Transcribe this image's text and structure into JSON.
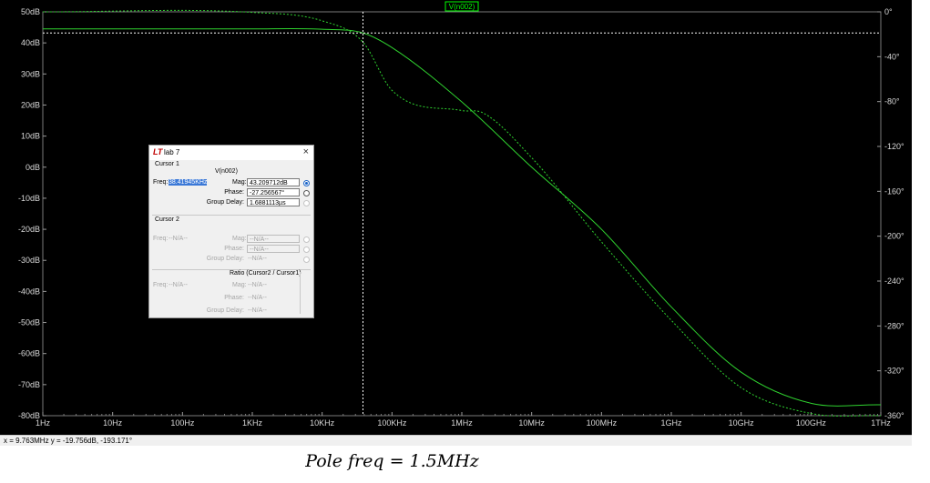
{
  "plot": {
    "trace_label": "V(n002)",
    "left_axis_ticks": [
      "50dB",
      "40dB",
      "30dB",
      "20dB",
      "10dB",
      "0dB",
      "-10dB",
      "-20dB",
      "-30dB",
      "-40dB",
      "-50dB",
      "-60dB",
      "-70dB",
      "-80dB"
    ],
    "right_axis_ticks": [
      "0°",
      "-40°",
      "-80°",
      "-120°",
      "-160°",
      "-200°",
      "-240°",
      "-280°",
      "-320°",
      "-360°"
    ],
    "x_axis_ticks": [
      "1Hz",
      "10Hz",
      "100Hz",
      "1KHz",
      "10KHz",
      "100KHz",
      "1MHz",
      "10MHz",
      "100MHz",
      "1GHz",
      "10GHz",
      "100GHz",
      "1THz"
    ],
    "colors": {
      "background": "#000000",
      "trace": "#2fd12f",
      "cursor": "#ffffff",
      "label_box": "#00ff00"
    }
  },
  "chart_data": {
    "type": "line",
    "xscale": "log",
    "xlim": [
      1,
      1000000000000
    ],
    "ylim_magnitude_db": [
      -80,
      50
    ],
    "ylim_phase_deg": [
      -360,
      0
    ],
    "grid": false,
    "series": [
      {
        "name": "V(n002)",
        "style": "solid",
        "axis": "magnitude",
        "x": [
          1,
          1000,
          10000,
          38420,
          100000,
          1000000,
          10000000,
          100000000,
          1000000000,
          10000000000,
          100000000000,
          1000000000000
        ],
        "y": [
          44.5,
          44.5,
          44.4,
          43.2,
          38.5,
          21.0,
          0.0,
          -20.0,
          -45.0,
          -66.0,
          -76.0,
          -76.5
        ]
      },
      {
        "name": "V(n002) phase",
        "style": "dotted",
        "axis": "phase",
        "x": [
          1,
          1000,
          10000,
          38420,
          100000,
          1000000,
          2000000,
          10000000,
          100000000,
          1000000000,
          10000000000,
          100000000000,
          1000000000000
        ],
        "y": [
          0,
          -0.5,
          -8,
          -27,
          -70,
          -88,
          -90,
          -130,
          -205,
          -275,
          -335,
          -358,
          -360
        ]
      }
    ],
    "cursor": {
      "x": 38419.45,
      "magnitude_db": 43.209712,
      "phase_deg": -27.256567
    }
  },
  "status_bar": {
    "text": "x = 9.763MHz   y = -19.756dB, -193.171°"
  },
  "dialog": {
    "title": "lab 7",
    "close": "×",
    "cursor1": {
      "header": "Cursor 1",
      "trace": "V(n002)",
      "freq_label": "Freq:",
      "freq_value": "38.41945KHz",
      "mag_label": "Mag:",
      "mag_value": "43.209712dB",
      "phase_label": "Phase:",
      "phase_value": "-27.256567°",
      "group_delay_label": "Group Delay:",
      "group_delay_value": "1.6881113µs"
    },
    "cursor2": {
      "header": "Cursor 2",
      "freq_label": "Freq:",
      "freq_value": "--N/A--",
      "mag_label": "Mag:",
      "mag_value": "--N/A--",
      "phase_label": "Phase:",
      "phase_value": "--N/A--",
      "group_delay_label": "Group Delay:",
      "group_delay_value": "--N/A--"
    },
    "ratio": {
      "header": "Ratio (Cursor2 / Cursor1)",
      "freq_label": "Freq:",
      "freq_value": "--N/A--",
      "mag_label": "Mag:",
      "mag_value": "--N/A--",
      "phase_label": "Phase:",
      "phase_value": "--N/A--",
      "group_delay_label": "Group Delay:",
      "group_delay_value": "--N/A--"
    }
  },
  "caption": {
    "text": "Pole freq  =  1.5MHz"
  }
}
